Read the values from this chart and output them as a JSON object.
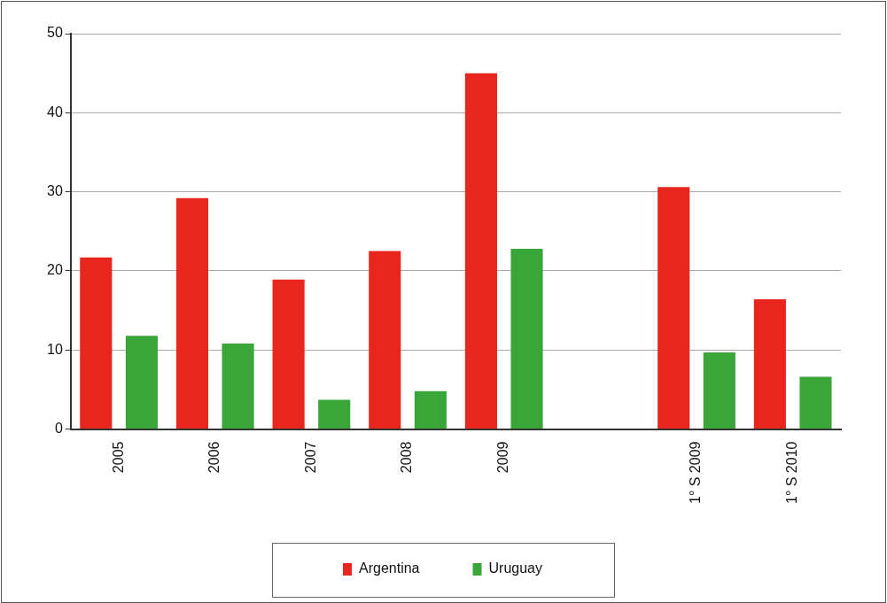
{
  "chart_data": {
    "type": "bar",
    "categories": [
      "2005",
      "2006",
      "2007",
      "2008",
      "2009",
      null,
      "1° S 2009",
      "1° S 2010"
    ],
    "series": [
      {
        "name": "Argentina",
        "color": "#e8261e",
        "values": [
          21.7,
          29.2,
          18.9,
          22.5,
          45.0,
          null,
          30.6,
          16.4
        ]
      },
      {
        "name": "Uruguay",
        "color": "#3aa63a",
        "values": [
          11.8,
          10.8,
          3.7,
          4.8,
          22.8,
          null,
          9.7,
          6.6
        ]
      }
    ],
    "ylim": [
      0,
      50
    ],
    "yticks": [
      0,
      10,
      20,
      30,
      40,
      50
    ],
    "grid": "y",
    "legend": "bottom"
  }
}
